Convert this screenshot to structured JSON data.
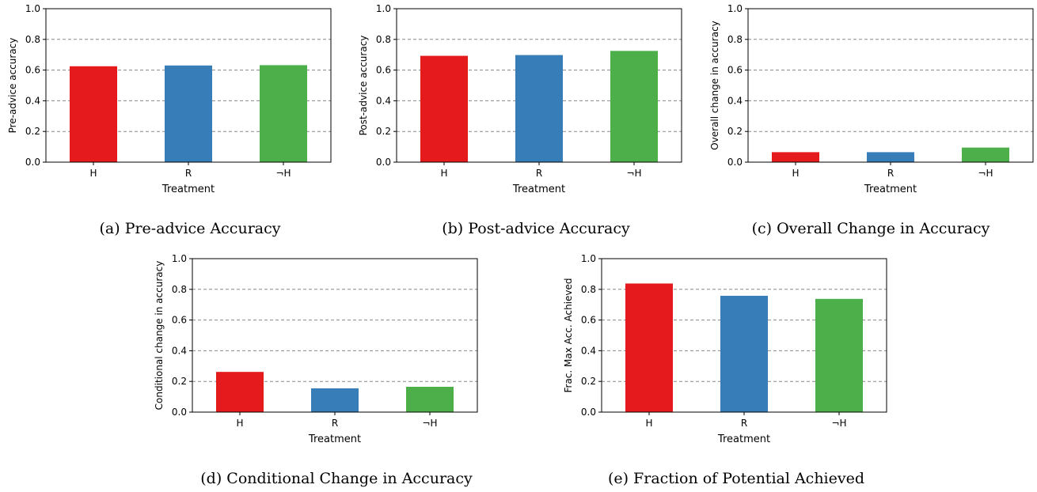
{
  "chart_data": [
    {
      "id": "a",
      "type": "bar",
      "categories": [
        "H",
        "R",
        "¬H"
      ],
      "values": [
        0.625,
        0.63,
        0.632
      ],
      "colors": [
        "#e41a1c",
        "#377eb8",
        "#4daf4a"
      ],
      "xlabel": "Treatment",
      "ylabel": "Pre-advice accuracy",
      "ylim": [
        0,
        1.0
      ],
      "yticks": [
        "0.0",
        "0.2",
        "0.4",
        "0.6",
        "0.8",
        "1.0"
      ],
      "grid": "y-dashed",
      "caption": "(a) Pre-advice Accuracy"
    },
    {
      "id": "b",
      "type": "bar",
      "categories": [
        "H",
        "R",
        "¬H"
      ],
      "values": [
        0.693,
        0.698,
        0.725
      ],
      "colors": [
        "#e41a1c",
        "#377eb8",
        "#4daf4a"
      ],
      "xlabel": "Treatment",
      "ylabel": "Post-advice accuracy",
      "ylim": [
        0,
        1.0
      ],
      "yticks": [
        "0.0",
        "0.2",
        "0.4",
        "0.6",
        "0.8",
        "1.0"
      ],
      "grid": "y-dashed",
      "caption": "(b) Post-advice Accuracy"
    },
    {
      "id": "c",
      "type": "bar",
      "categories": [
        "H",
        "R",
        "¬H"
      ],
      "values": [
        0.065,
        0.065,
        0.095
      ],
      "colors": [
        "#e41a1c",
        "#377eb8",
        "#4daf4a"
      ],
      "xlabel": "Treatment",
      "ylabel": "Overall change in accuracy",
      "ylim": [
        0,
        1.0
      ],
      "yticks": [
        "0.0",
        "0.2",
        "0.4",
        "0.6",
        "0.8",
        "1.0"
      ],
      "grid": "y-dashed",
      "caption": "(c) Overall Change in Accuracy"
    },
    {
      "id": "d",
      "type": "bar",
      "categories": [
        "H",
        "R",
        "¬H"
      ],
      "values": [
        0.262,
        0.155,
        0.165
      ],
      "colors": [
        "#e41a1c",
        "#377eb8",
        "#4daf4a"
      ],
      "xlabel": "Treatment",
      "ylabel": "Conditional change in accuracy",
      "ylim": [
        0,
        1.0
      ],
      "yticks": [
        "0.0",
        "0.2",
        "0.4",
        "0.6",
        "0.8",
        "1.0"
      ],
      "grid": "y-dashed",
      "caption": "(d) Conditional Change in Accuracy"
    },
    {
      "id": "e",
      "type": "bar",
      "categories": [
        "H",
        "R",
        "¬H"
      ],
      "values": [
        0.838,
        0.758,
        0.738
      ],
      "colors": [
        "#e41a1c",
        "#377eb8",
        "#4daf4a"
      ],
      "xlabel": "Treatment",
      "ylabel": "Frac. Max Acc. Achieved",
      "ylim": [
        0,
        1.0
      ],
      "yticks": [
        "0.0",
        "0.2",
        "0.4",
        "0.6",
        "0.8",
        "1.0"
      ],
      "grid": "y-dashed",
      "caption": "(e) Fraction of Potential Achieved"
    }
  ]
}
